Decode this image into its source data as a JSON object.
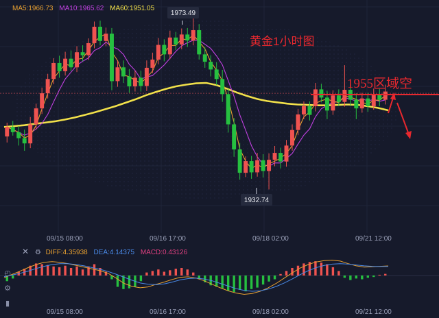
{
  "legend": {
    "ma5": "MA5:1966.73",
    "ma10": "MA10:1965.62",
    "ma60": "MA60:1951.05"
  },
  "macd_legend": {
    "diff": "DIFF:4.35938",
    "dea": "DEA:4.14375",
    "macd": "MACD:0.43126"
  },
  "annotations": {
    "title": "黄金1小时图",
    "zone": "1955区域空",
    "high_label": "1973.49",
    "low_label": "1932.74"
  },
  "x_ticks": [
    "09/15 08:00",
    "09/16 17:00",
    "09/18 02:00",
    "09/21 12:00"
  ],
  "colors": {
    "up": "#ef5350",
    "down": "#26c040",
    "ma5": "#e8a030",
    "ma10": "#c040e0",
    "ma60": "#f2e14a",
    "annotation": "#e8282e",
    "diff": "#e8a030",
    "dea": "#4a8ae8"
  },
  "chart_data": {
    "type": "candlestick",
    "timeframe": "1H",
    "y_range": [
      1929,
      1975
    ],
    "marked_points": {
      "high": 1973.49,
      "low": 1932.74
    },
    "resistance_level": 1955,
    "ma_last": {
      "ma5": 1966.73,
      "ma10": 1965.62,
      "ma60": 1951.05
    },
    "macd_last": {
      "diff": 4.35938,
      "dea": 4.14375,
      "macd": 0.43126
    },
    "ma60_path": [
      1947.2,
      1947.4,
      1947.6,
      1947.9,
      1948.2,
      1948.5,
      1948.9,
      1949.4,
      1950.0,
      1950.6,
      1951.3,
      1952.0,
      1952.8,
      1953.6,
      1954.5,
      1955.3,
      1956.0,
      1956.6,
      1957.0,
      1957.3,
      1957.4,
      1956.9,
      1956.1,
      1955.2,
      1954.4,
      1953.7,
      1953.2,
      1952.9,
      1952.6,
      1952.4,
      1952.3,
      1952.2,
      1952.2,
      1952.3,
      1952.4,
      1952.3,
      1952.0,
      1951.6,
      1951.05
    ],
    "candles": [
      [
        1945.0,
        1947.2,
        1943.6,
        1948.2
      ],
      [
        1947.2,
        1946.0,
        1945.2,
        1948.6
      ],
      [
        1946.0,
        1944.6,
        1942.9,
        1947.4
      ],
      [
        1944.6,
        1943.4,
        1941.7,
        1946.6
      ],
      [
        1943.4,
        1947.8,
        1942.3,
        1949.5
      ],
      [
        1947.8,
        1951.5,
        1946.6,
        1952.6
      ],
      [
        1951.5,
        1955.0,
        1950.2,
        1956.3
      ],
      [
        1955.0,
        1958.3,
        1953.8,
        1959.5
      ],
      [
        1958.3,
        1962.0,
        1957.1,
        1963.1
      ],
      [
        1962.0,
        1960.1,
        1958.6,
        1963.7
      ],
      [
        1960.1,
        1963.0,
        1959.1,
        1964.6
      ],
      [
        1963.0,
        1961.0,
        1960.2,
        1964.9
      ],
      [
        1961.0,
        1964.5,
        1959.9,
        1965.9
      ],
      [
        1964.5,
        1963.8,
        1962.4,
        1966.1
      ],
      [
        1963.8,
        1966.6,
        1962.7,
        1967.7
      ],
      [
        1966.6,
        1970.4,
        1965.4,
        1971.6
      ],
      [
        1970.4,
        1967.1,
        1966.1,
        1971.8
      ],
      [
        1967.1,
        1968.8,
        1965.9,
        1970.2
      ],
      [
        1968.8,
        1957.8,
        1955.7,
        1970.1
      ],
      [
        1957.8,
        1961.0,
        1956.5,
        1962.5
      ],
      [
        1961.0,
        1958.9,
        1957.4,
        1962.6
      ],
      [
        1958.9,
        1956.6,
        1955.1,
        1960.6
      ],
      [
        1956.6,
        1958.6,
        1955.4,
        1960.2
      ],
      [
        1958.6,
        1956.7,
        1955.4,
        1960.2
      ],
      [
        1956.7,
        1960.9,
        1955.5,
        1962.6
      ],
      [
        1960.9,
        1962.8,
        1959.7,
        1964.4
      ],
      [
        1962.8,
        1966.2,
        1961.7,
        1967.8
      ],
      [
        1966.2,
        1964.0,
        1962.4,
        1967.5
      ],
      [
        1964.0,
        1967.9,
        1962.9,
        1969.5
      ],
      [
        1967.9,
        1966.3,
        1965.0,
        1969.2
      ],
      [
        1966.3,
        1968.6,
        1965.2,
        1970.0
      ],
      [
        1968.6,
        1967.2,
        1965.7,
        1970.1
      ],
      [
        1967.2,
        1969.6,
        1966.1,
        1973.49
      ],
      [
        1969.6,
        1964.0,
        1962.8,
        1971.0
      ],
      [
        1964.0,
        1962.3,
        1960.9,
        1965.6
      ],
      [
        1962.3,
        1960.5,
        1958.9,
        1963.8
      ],
      [
        1960.5,
        1958.3,
        1956.9,
        1962.2
      ],
      [
        1958.3,
        1954.8,
        1953.0,
        1960.4
      ],
      [
        1954.8,
        1947.8,
        1945.9,
        1956.0
      ],
      [
        1947.8,
        1942.0,
        1940.3,
        1949.3
      ],
      [
        1942.0,
        1936.6,
        1935.0,
        1943.5
      ],
      [
        1936.6,
        1939.3,
        1935.6,
        1940.4
      ],
      [
        1939.3,
        1936.7,
        1935.2,
        1940.5
      ],
      [
        1936.7,
        1939.5,
        1935.7,
        1941.2
      ],
      [
        1939.5,
        1937.0,
        1935.5,
        1940.9
      ],
      [
        1937.0,
        1939.6,
        1932.74,
        1941.1
      ],
      [
        1939.6,
        1941.2,
        1938.1,
        1942.8
      ],
      [
        1941.2,
        1939.2,
        1937.6,
        1942.4
      ],
      [
        1939.2,
        1942.9,
        1938.0,
        1944.2
      ],
      [
        1942.9,
        1946.5,
        1941.7,
        1947.8
      ],
      [
        1946.5,
        1950.1,
        1945.3,
        1951.4
      ],
      [
        1950.1,
        1952.0,
        1949.0,
        1953.1
      ],
      [
        1952.0,
        1950.0,
        1948.7,
        1953.1
      ],
      [
        1952.0,
        1955.9,
        1950.8,
        1957.4
      ],
      [
        1955.9,
        1954.0,
        1952.9,
        1957.2
      ],
      [
        1954.0,
        1951.0,
        1949.0,
        1955.6
      ],
      [
        1951.0,
        1954.5,
        1950.0,
        1955.7
      ],
      [
        1954.5,
        1953.0,
        1952.0,
        1955.9
      ],
      [
        1953.0,
        1955.8,
        1951.9,
        1961.5
      ],
      [
        1955.8,
        1953.5,
        1952.0,
        1957.1
      ],
      [
        1953.5,
        1951.5,
        1949.0,
        1955.0
      ],
      [
        1951.5,
        1953.8,
        1950.5,
        1955.1
      ],
      [
        1953.8,
        1952.0,
        1950.7,
        1955.1
      ],
      [
        1952.0,
        1954.6,
        1951.2,
        1956.1
      ],
      [
        1954.6,
        1953.5,
        1952.0,
        1956.0
      ],
      [
        1953.5,
        1955.4,
        1952.4,
        1957.0
      ]
    ],
    "macd_bars": [
      -1.5,
      -0.8,
      1.0,
      1.8,
      2.6,
      3.2,
      3.0,
      2.8,
      2.4,
      2.2,
      2.6,
      2.0,
      2.4,
      1.6,
      2.4,
      3.0,
      2.0,
      1.0,
      -1.0,
      -3.0,
      -3.6,
      -3.4,
      -3.0,
      -1.5,
      0.8,
      1.2,
      1.6,
      1.0,
      1.4,
      1.8,
      2.0,
      1.6,
      0.8,
      -1.0,
      -1.8,
      -2.6,
      -3.0,
      -3.4,
      -4.0,
      -4.4,
      -3.8,
      -4.2,
      -3.6,
      -3.2,
      -2.4,
      -1.6,
      -1.0,
      0.4,
      1.2,
      2.0,
      2.6,
      3.2,
      3.6,
      3.8,
      3.4,
      3.0,
      2.2,
      1.2,
      -0.6,
      -1.2,
      -0.8,
      -1.0,
      -0.6,
      -0.4,
      0.2,
      0.43126
    ],
    "diff_path": [
      -1.0,
      0.5,
      2.0,
      3.6,
      5.0,
      6.0,
      6.3,
      6.0,
      5.4,
      4.6,
      3.8,
      3.0,
      2.2,
      1.0,
      -1.2,
      -3.6,
      -5.0,
      -5.6,
      -5.2,
      -4.0,
      -3.0,
      -1.8,
      -0.8,
      -0.6,
      -1.2,
      -2.4,
      -4.0,
      -5.6,
      -7.0,
      -8.0,
      -8.6,
      -8.2,
      -7.2,
      -5.6,
      -3.6,
      -1.2,
      1.2,
      3.4,
      5.0,
      6.2,
      6.8,
      7.0,
      6.6,
      5.4,
      4.4,
      3.8,
      4.0,
      4.2,
      4.35938
    ],
    "dea_path": [
      -0.5,
      0.2,
      1.0,
      2.0,
      3.2,
      4.2,
      5.0,
      5.4,
      5.4,
      5.0,
      4.4,
      3.6,
      2.8,
      1.8,
      0.6,
      -0.8,
      -2.2,
      -3.4,
      -4.0,
      -4.2,
      -3.8,
      -3.0,
      -2.0,
      -1.4,
      -1.2,
      -1.6,
      -2.4,
      -3.6,
      -4.8,
      -6.0,
      -6.8,
      -7.2,
      -7.0,
      -6.2,
      -5.0,
      -3.4,
      -1.6,
      0.4,
      2.2,
      3.6,
      4.6,
      5.2,
      5.4,
      5.2,
      4.8,
      4.4,
      4.2,
      4.1,
      4.14375
    ]
  }
}
